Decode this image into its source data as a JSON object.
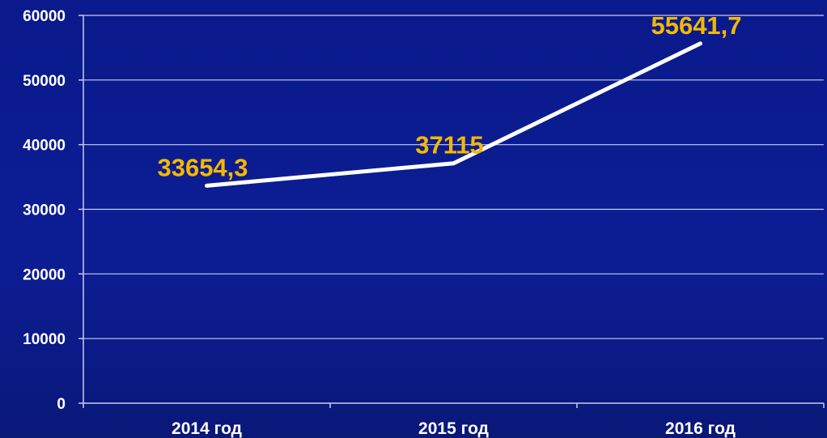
{
  "chart_data": {
    "type": "line",
    "categories": [
      "2014 год",
      "2015 год",
      "2016 год"
    ],
    "values": [
      33654.3,
      37115,
      55641.7
    ],
    "data_labels": [
      "33654,3",
      "37115",
      "55641,7"
    ],
    "yticks": [
      "0",
      "10000",
      "20000",
      "30000",
      "40000",
      "50000",
      "60000"
    ],
    "ylim": [
      0,
      60000
    ],
    "grid": true,
    "legend": "none",
    "title": "",
    "xlabel": "",
    "ylabel": ""
  },
  "colors": {
    "background": "#0c1d94",
    "line": "#ffffff",
    "data_label": "#f5b800",
    "text": "#ffffff",
    "grid": "#c8ccec"
  }
}
